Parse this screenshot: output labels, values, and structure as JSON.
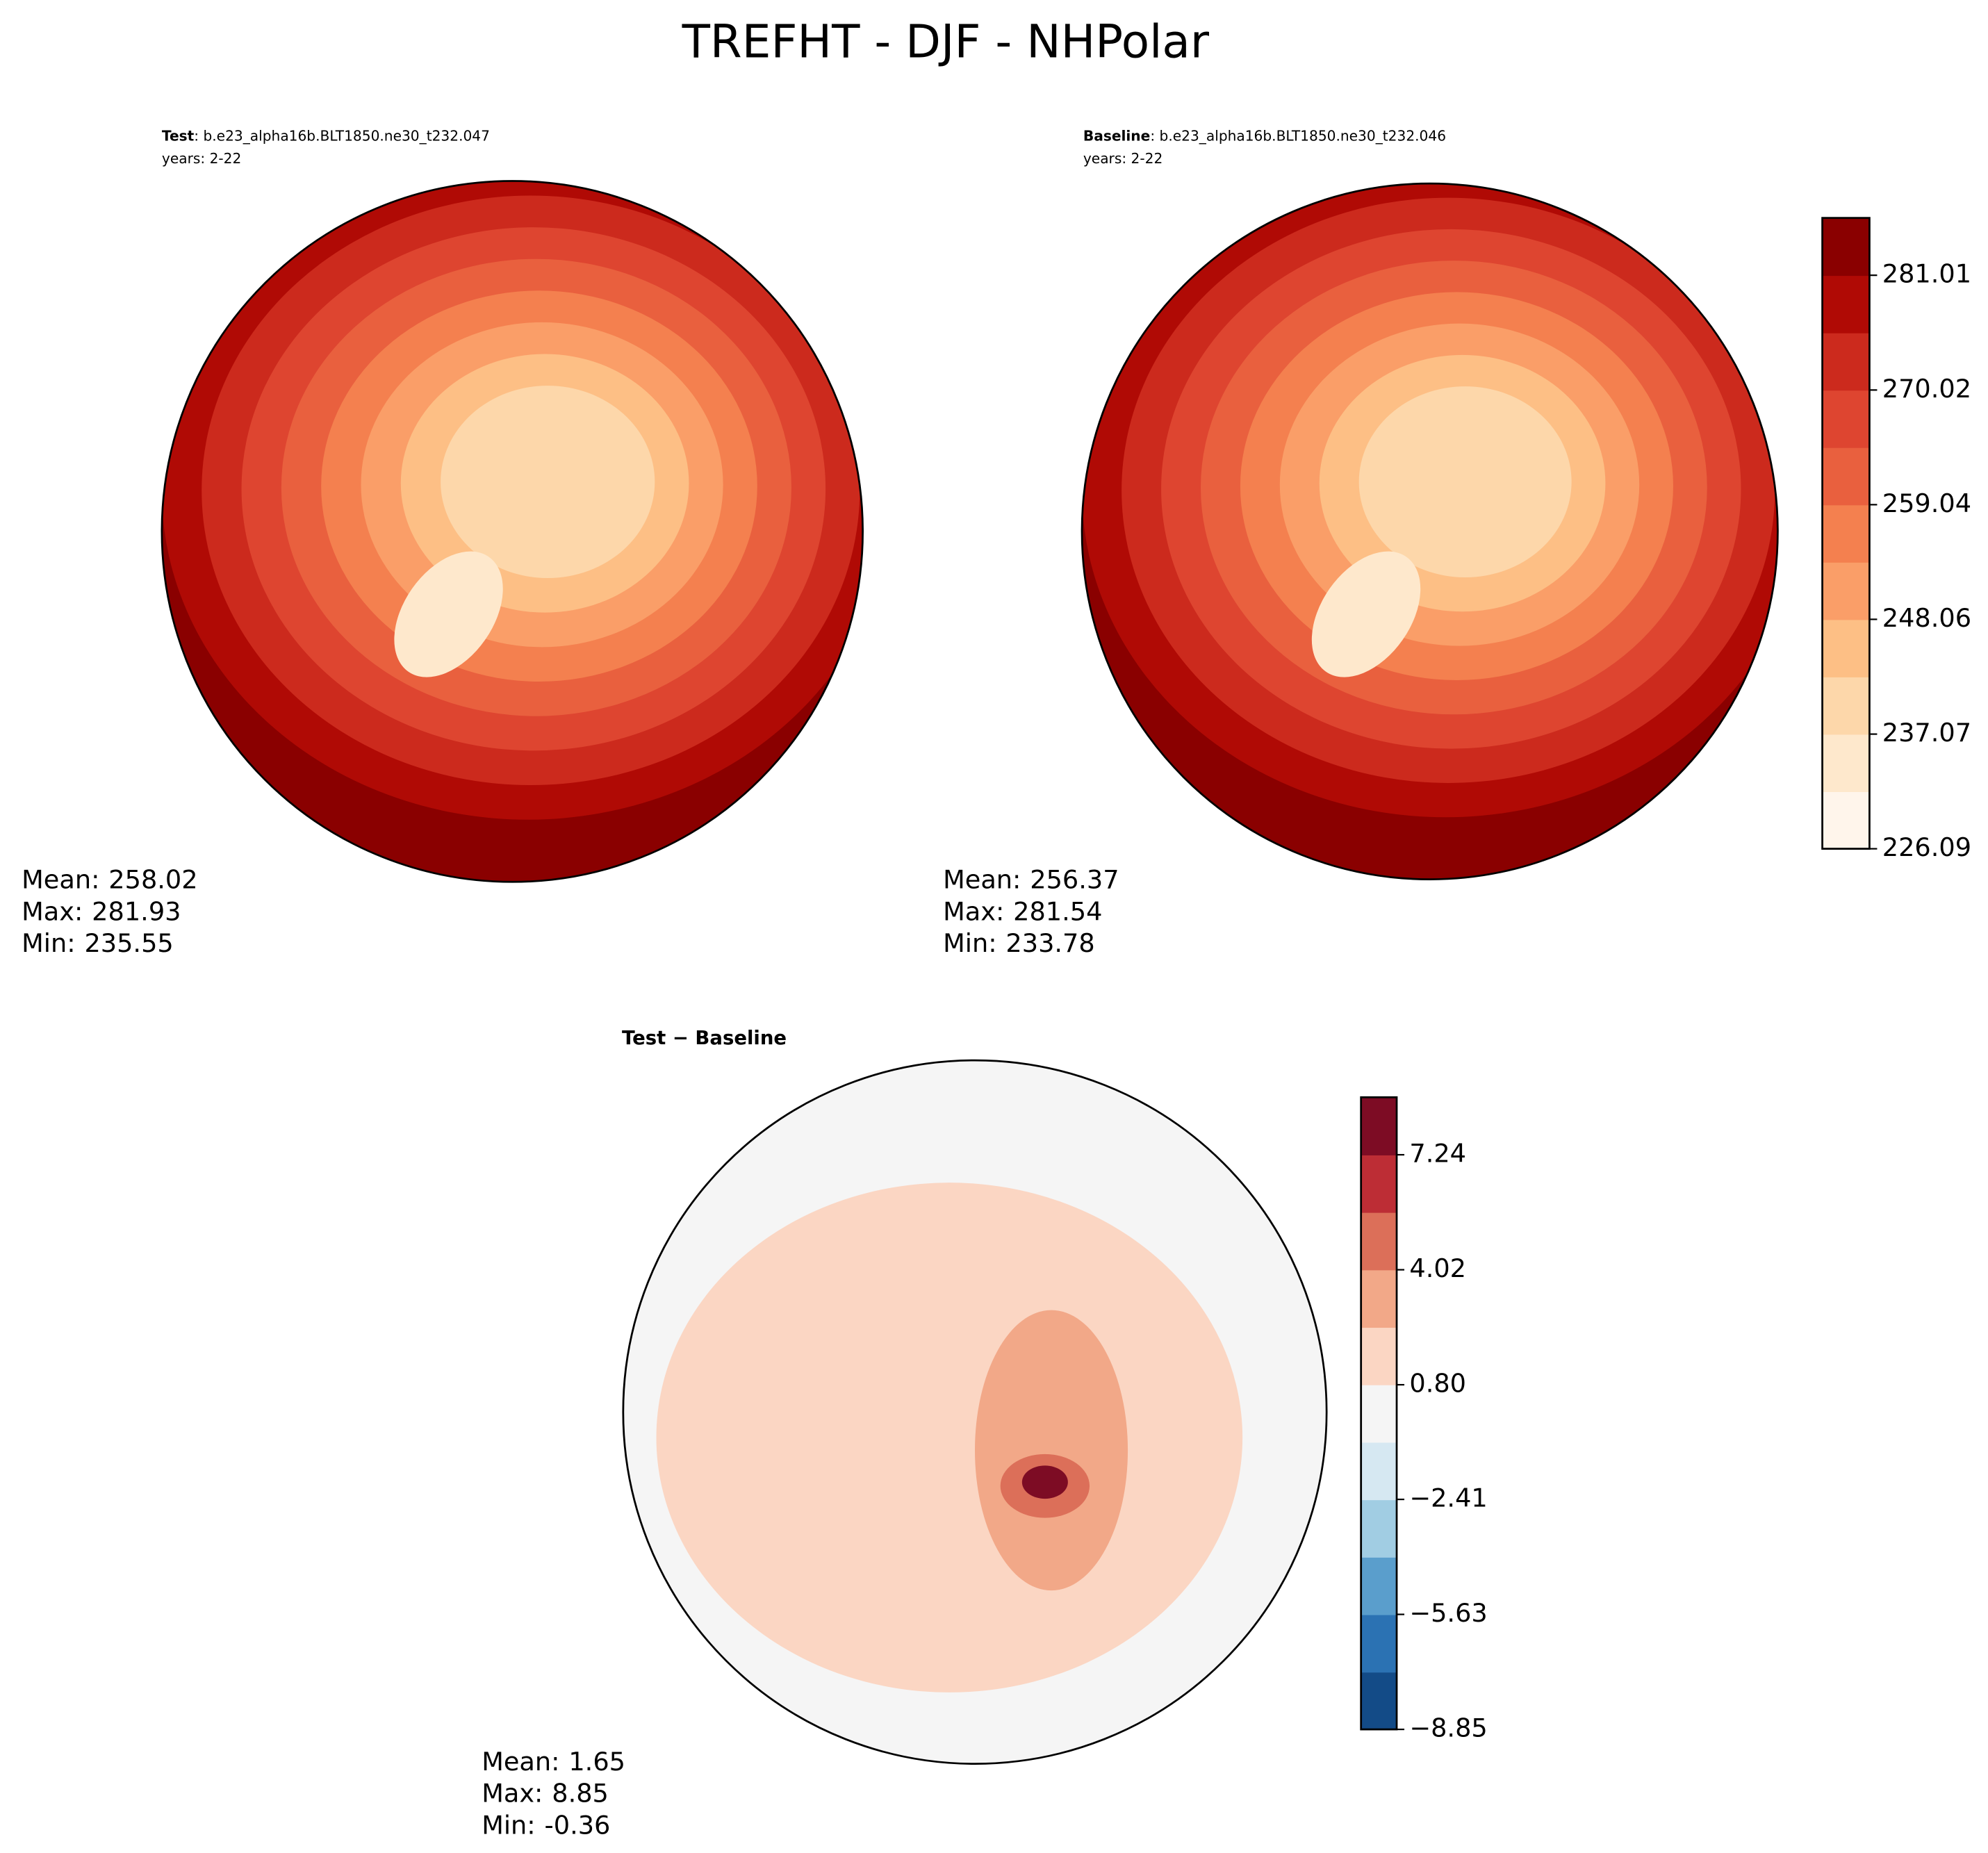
{
  "title": "TREFHT - DJF - NHPolar",
  "panels": [
    {
      "label": "Test",
      "case": ": b.e23_alpha16b.BLT1850.ne30_t232.047",
      "years": "years: 2-22",
      "stats": [
        {
          "label": "Mean:",
          "value": 258.02
        },
        {
          "label": "Max:",
          "value": 281.93
        },
        {
          "label": "Min:",
          "value": 235.55
        }
      ]
    },
    {
      "label": "Baseline",
      "case": ": b.e23_alpha16b.BLT1850.ne30_t232.046",
      "years": "years: 2-22",
      "stats": [
        {
          "label": "Mean:",
          "value": 256.37
        },
        {
          "label": "Max:",
          "value": 281.54
        },
        {
          "label": "Min:",
          "value": 233.78
        }
      ]
    },
    {
      "label": "Test − Baseline",
      "stats": [
        {
          "label": "Mean:",
          "value": 1.65
        },
        {
          "label": "Max:",
          "value": 8.85
        },
        {
          "label": "Min:",
          "value": -0.36
        }
      ]
    }
  ],
  "colorbars": [
    {
      "ylim": [
        226.09,
        286.5
      ],
      "yticks": [
        226.09,
        237.07,
        248.06,
        259.04,
        270.02,
        281.01
      ],
      "colors": [
        "#fff5eb",
        "#fee8cc",
        "#fdd7aa",
        "#fdbf85",
        "#fa9e68",
        "#f4804f",
        "#e9603e",
        "#de4530",
        "#cc2a1d",
        "#b00a05",
        "#8a0000"
      ]
    },
    {
      "ylim": [
        -8.85,
        8.85
      ],
      "yticks": [
        {
          "value": -8.85,
          "label": "−8.85"
        },
        {
          "value": -5.63,
          "label": "−5.63"
        },
        {
          "value": -2.41,
          "label": "−2.41"
        },
        {
          "value": 0.8,
          "label": "0.80"
        },
        4.02,
        7.24
      ],
      "colors": [
        "#134b87",
        "#2b72b3",
        "#5a9ecc",
        "#a1cde3",
        "#d6e8f2",
        "#f5f5f5",
        "#fbd6c3",
        "#f2a888",
        "#dc6f59",
        "#bd2d35",
        "#7d0c24"
      ]
    }
  ]
}
